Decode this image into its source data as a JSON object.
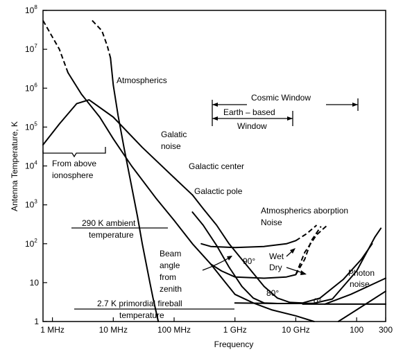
{
  "chart_data": {
    "type": "line",
    "xlabel": "Frequency",
    "ylabel": "Antenna Temperature, K",
    "x_scale": "log",
    "y_scale": "log",
    "xlim_hz": [
      700000,
      300000000000
    ],
    "ylim": [
      1,
      100000000
    ],
    "x_ticks": [
      {
        "value": 1000000,
        "label": "1 MHz"
      },
      {
        "value": 10000000,
        "label": "10 MHz"
      },
      {
        "value": 100000000,
        "label": "100 MHz"
      },
      {
        "value": 1000000000,
        "label": "1 GHz"
      },
      {
        "value": 10000000000,
        "label": "10 GHz"
      },
      {
        "value": 100000000000,
        "label": "100"
      },
      {
        "value": 300000000000,
        "label": "300"
      }
    ],
    "y_ticks": [
      {
        "value": 1,
        "label": "1"
      },
      {
        "value": 10,
        "label": "10"
      },
      {
        "value": 100,
        "base": "10",
        "exp": "2"
      },
      {
        "value": 1000,
        "base": "10",
        "exp": "3"
      },
      {
        "value": 10000,
        "base": "10",
        "exp": "4"
      },
      {
        "value": 100000,
        "base": "10",
        "exp": "5"
      },
      {
        "value": 1000000,
        "base": "10",
        "exp": "6"
      },
      {
        "value": 10000000,
        "base": "10",
        "exp": "7"
      },
      {
        "value": 100000000,
        "base": "10",
        "exp": "8"
      }
    ],
    "series": [
      {
        "style": "dashed",
        "points": [
          [
            700000,
            55000000
          ],
          [
            1300000,
            10000000
          ],
          [
            1800000,
            2500000
          ]
        ]
      },
      {
        "style": "solid",
        "points": [
          [
            1800000,
            2500000
          ],
          [
            3000000,
            700000
          ],
          [
            6000000,
            180000
          ],
          [
            10000000,
            50000
          ],
          [
            20000000,
            10000
          ],
          [
            50000000,
            1500
          ],
          [
            100000000,
            400
          ],
          [
            200000000,
            100
          ],
          [
            400000000,
            30
          ],
          [
            700000000,
            10
          ],
          [
            1000000000,
            5
          ],
          [
            2000000000,
            3
          ],
          [
            4000000000,
            2
          ],
          [
            10000000000,
            1.4
          ],
          [
            20000000000,
            1
          ]
        ]
      },
      {
        "style": "dashed",
        "points": [
          [
            4500000,
            55000000
          ],
          [
            6500000,
            30000000
          ],
          [
            8000000,
            12000000
          ],
          [
            9000000,
            6000000
          ]
        ]
      },
      {
        "style": "solid",
        "points": [
          [
            9000000,
            6000000
          ],
          [
            10000000,
            1200000
          ],
          [
            12000000,
            200000
          ],
          [
            15000000,
            30000
          ],
          [
            20000000,
            3000
          ],
          [
            25000000,
            500
          ],
          [
            30000000,
            100
          ],
          [
            40000000,
            10
          ],
          [
            45000000,
            4
          ],
          [
            55000000,
            1
          ]
        ]
      },
      {
        "style": "solid",
        "points": [
          [
            700000,
            35000
          ],
          [
            1300000,
            120000
          ],
          [
            2500000,
            400000
          ],
          [
            4000000,
            500000
          ],
          [
            10000000,
            180000
          ],
          [
            30000000,
            30000
          ],
          [
            100000000,
            5000
          ],
          [
            200000000,
            1800
          ]
        ]
      },
      {
        "style": "solid",
        "points": [
          [
            200000000,
            1800
          ],
          [
            300000000,
            800
          ],
          [
            500000000,
            300
          ],
          [
            800000000,
            100
          ],
          [
            1500000000,
            30
          ],
          [
            3000000000,
            8
          ],
          [
            5000000000,
            4
          ],
          [
            8000000000,
            3.1
          ],
          [
            13000000000,
            3
          ],
          [
            25000000000,
            4
          ],
          [
            60000000000,
            12
          ],
          [
            120000000000,
            40
          ],
          [
            180000000000,
            100
          ]
        ]
      },
      {
        "style": "solid",
        "points": [
          [
            200000000,
            650
          ],
          [
            300000000,
            300
          ],
          [
            500000000,
            90
          ],
          [
            800000000,
            25
          ],
          [
            1300000000,
            8
          ],
          [
            2000000000,
            4
          ],
          [
            3000000000,
            3
          ],
          [
            5000000000,
            2.9
          ],
          [
            10000000000,
            2.9
          ]
        ]
      },
      {
        "style": "solid",
        "points": [
          [
            13000000000,
            2.8
          ],
          [
            30000000000,
            2.8
          ],
          [
            100000000000,
            2.8
          ],
          [
            300000000000,
            2.8
          ]
        ]
      },
      {
        "style": "solid",
        "points": [
          [
            30000000000,
            2.8
          ],
          [
            80000000000,
            5
          ],
          [
            300000000000,
            13
          ]
        ]
      },
      {
        "style": "solid",
        "points": [
          [
            280000000,
            100
          ],
          [
            400000000,
            85
          ],
          [
            1000000000,
            80
          ],
          [
            3000000000,
            85
          ],
          [
            7000000000,
            100
          ],
          [
            10000000000,
            120
          ]
        ]
      },
      {
        "style": "dashed",
        "points": [
          [
            10000000000,
            120
          ],
          [
            15000000000,
            180
          ],
          [
            22000000000,
            300
          ]
        ]
      },
      {
        "style": "solid",
        "points": [
          [
            400000000,
            30
          ],
          [
            600000000,
            20
          ],
          [
            1000000000,
            14
          ],
          [
            3000000000,
            13
          ],
          [
            7000000000,
            14
          ],
          [
            10000000000,
            16
          ]
        ]
      },
      {
        "style": "dashed",
        "points": [
          [
            10000000000,
            16
          ],
          [
            14000000000,
            40
          ],
          [
            18000000000,
            120
          ],
          [
            26000000000,
            280
          ]
        ]
      },
      {
        "style": "dashed",
        "points": [
          [
            10000000000,
            16
          ],
          [
            14000000000,
            60
          ],
          [
            22000000000,
            170
          ],
          [
            33000000000,
            300
          ]
        ]
      },
      {
        "style": "solid",
        "points": [
          [
            1000000000,
            3
          ],
          [
            5000000000,
            2.9
          ],
          [
            10000000000,
            2.9
          ],
          [
            20000000000,
            2.95
          ],
          [
            40000000000,
            3.8
          ],
          [
            100000000000,
            20
          ],
          [
            200000000000,
            150
          ],
          [
            250000000000,
            250
          ]
        ]
      },
      {
        "style": "solid",
        "points": [
          [
            50000000000,
            1
          ],
          [
            100000000000,
            2
          ],
          [
            300000000000,
            6
          ]
        ]
      }
    ],
    "annotations": [
      "Atmospherics",
      "Cosmic Window",
      "Earth – based",
      "Window",
      "Galatic",
      "noise",
      "Galactic center",
      "Galactic pole",
      "From above",
      "ionosphere",
      "290 K ambient",
      "temperature",
      "Atmospherics aborption",
      "Noise",
      "Beam",
      "angle",
      "from",
      "zenith",
      "Wet",
      "Dry",
      "90°",
      "80°",
      "0°",
      "Photon",
      "noise",
      "2.7 K primordial fireball",
      "temperature"
    ]
  }
}
